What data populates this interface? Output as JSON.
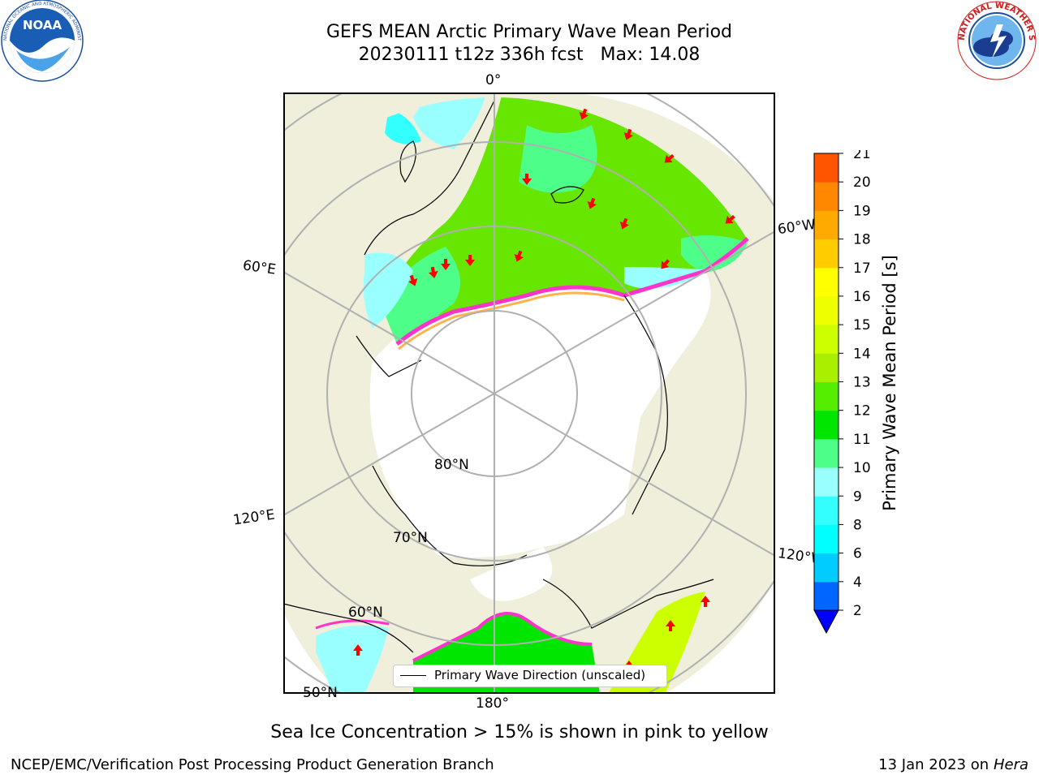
{
  "header": {
    "title_line1": "GEFS MEAN Arctic Primary Wave Mean Period",
    "title_line2": "20230111 t12z 336h fcst   Max: 14.08",
    "noaa_logo_text": "NOAA",
    "noaa_ring_text": "NATIONAL OCEANIC AND ATMOSPHERIC ADMINISTRATION · U.S. DEPARTMENT OF COMMERCE",
    "nws_ring_text": "NATIONAL WEATHER SERVICE"
  },
  "map": {
    "projection": "north-polar-stereographic",
    "lon_labels": [
      "0°",
      "60°E",
      "120°E",
      "180°",
      "120°W",
      "60°W"
    ],
    "lat_labels": [
      "80°N",
      "70°N",
      "60°N",
      "50°N"
    ],
    "colors": {
      "land": "#efefdc",
      "ocean_green": "#66e600",
      "ocean_lightgreen": "#4dff88",
      "ocean_cyan": "#33ffff",
      "ocean_lightcyan": "#99ffff",
      "ocean_yellowgreen": "#ccff00",
      "ice_edge_pink": "#ff33cc",
      "ice_edge_orange": "#ffb34d",
      "arrow": "#ff0000",
      "graticule": "#b0b0b0"
    }
  },
  "legend": {
    "label": "Primary Wave Direction (unscaled)"
  },
  "colorbar": {
    "label": "Primary Wave Mean Period [s]",
    "ticks": [
      "2",
      "4",
      "6",
      "8",
      "9",
      "10",
      "11",
      "12",
      "13",
      "14",
      "15",
      "16",
      "17",
      "18",
      "19",
      "20",
      "21"
    ],
    "colors": [
      "#0066ff",
      "#00ccff",
      "#00ffff",
      "#33ffff",
      "#99ffff",
      "#4dff88",
      "#00e600",
      "#55ee00",
      "#aaee00",
      "#ccff00",
      "#eeff00",
      "#ffff00",
      "#ffcc00",
      "#ffaa00",
      "#ff8800",
      "#ff5500",
      "#ff2200",
      "#ff0000"
    ],
    "extend_color": "#0000ff"
  },
  "caption": "Sea Ice Concentration > 15% is shown in pink to yellow",
  "footer": {
    "left": "NCEP/EMC/Verification Post Processing Product Generation Branch",
    "right_date": "13 Jan 2023 on ",
    "right_machine": "Hera"
  }
}
